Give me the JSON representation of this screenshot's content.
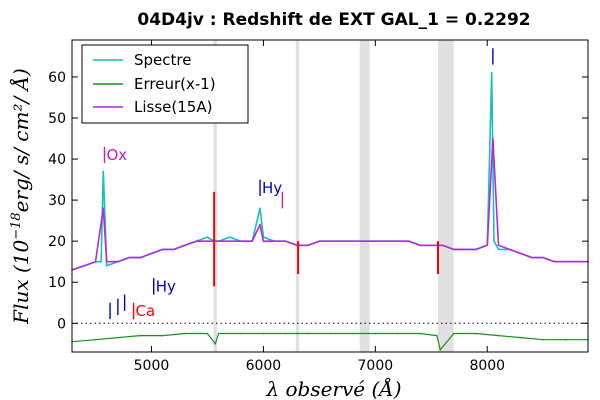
{
  "chart_data": {
    "type": "line",
    "title": "04D4jv : Redshift de EXT GAL_1 = 0.2292",
    "xlabel": "λ observé (Å)",
    "ylabel_main": "Flux (10",
    "ylabel_exp": "−18",
    "ylabel_units": "erg/ s/ cm²/ Å)",
    "xlim": [
      4290,
      8900
    ],
    "ylim": [
      -7,
      69
    ],
    "xticks": [
      5000,
      6000,
      7000,
      8000
    ],
    "yticks": [
      0,
      10,
      20,
      30,
      40,
      50,
      60
    ],
    "xtick_labels": [
      "5000",
      "6000",
      "7000",
      "8000"
    ],
    "ytick_labels": [
      "0",
      "10",
      "20",
      "30",
      "40",
      "50",
      "60"
    ],
    "legend_position": "top-left",
    "zero_line": true,
    "series": [
      {
        "name": "Spectre",
        "color": "#17bfbf",
        "x": [
          4290,
          4400,
          4500,
          4550,
          4570,
          4600,
          4700,
          4800,
          4900,
          5000,
          5100,
          5200,
          5300,
          5400,
          5500,
          5560,
          5600,
          5700,
          5800,
          5900,
          5970,
          6000,
          6100,
          6200,
          6300,
          6400,
          6500,
          6600,
          6700,
          6800,
          6900,
          7000,
          7100,
          7200,
          7300,
          7400,
          7500,
          7600,
          7700,
          7800,
          7900,
          8000,
          8040,
          8060,
          8100,
          8200,
          8300,
          8400,
          8500,
          8600,
          8700,
          8800,
          8900
        ],
        "y": [
          13,
          14,
          15,
          15,
          37,
          14,
          15,
          16,
          16,
          17,
          18,
          18,
          19,
          20,
          21,
          20,
          20,
          21,
          20,
          20,
          28,
          21,
          20,
          20,
          19,
          19,
          20,
          20,
          20,
          20,
          20,
          20,
          20,
          20,
          20,
          19,
          19,
          19,
          18,
          18,
          18,
          19,
          61,
          20,
          18,
          18,
          17,
          16,
          16,
          15,
          15,
          15,
          15
        ]
      },
      {
        "name": "Erreur(x-1)",
        "color": "#1e8c1e",
        "x": [
          4290,
          4500,
          4700,
          4900,
          5100,
          5300,
          5500,
          5570,
          5600,
          5800,
          6000,
          6200,
          6400,
          6600,
          6800,
          7000,
          7200,
          7400,
          7550,
          7580,
          7700,
          7900,
          8100,
          8300,
          8500,
          8700,
          8900
        ],
        "y": [
          -4.5,
          -4,
          -3.5,
          -3,
          -3,
          -2.5,
          -2.5,
          -5,
          -2.5,
          -2.5,
          -2.5,
          -2.5,
          -2.5,
          -2.5,
          -2.5,
          -2.5,
          -2.5,
          -2.5,
          -3,
          -6.5,
          -2.5,
          -2.5,
          -3,
          -3.5,
          -4,
          -4,
          -4
        ]
      },
      {
        "name": "Lisse(15A)",
        "color": "#b22cd6",
        "x": [
          4290,
          4400,
          4500,
          4570,
          4600,
          4700,
          4800,
          4900,
          5000,
          5100,
          5200,
          5300,
          5400,
          5500,
          5600,
          5700,
          5800,
          5900,
          5970,
          6000,
          6100,
          6200,
          6300,
          6400,
          6500,
          6600,
          6700,
          6800,
          6900,
          7000,
          7100,
          7200,
          7300,
          7400,
          7500,
          7600,
          7700,
          7800,
          7900,
          8000,
          8050,
          8100,
          8200,
          8300,
          8400,
          8500,
          8600,
          8700,
          8800,
          8900
        ],
        "y": [
          13,
          14,
          15,
          28,
          15,
          15,
          16,
          16,
          17,
          18,
          18,
          19,
          20,
          20,
          20,
          20,
          20,
          20,
          24,
          20,
          20,
          20,
          19,
          19,
          20,
          20,
          20,
          20,
          20,
          20,
          20,
          20,
          20,
          19,
          19,
          19,
          18,
          18,
          18,
          19,
          45,
          19,
          18,
          17,
          16,
          16,
          15,
          15,
          15,
          15
        ]
      }
    ],
    "bad_pixels": {
      "color": "#ff0000",
      "x": [
        5560,
        6310,
        7560
      ],
      "ymin": [
        9,
        12,
        12
      ],
      "ymax": [
        32,
        20,
        20
      ]
    },
    "shaded_bands": [
      [
        5555,
        5585
      ],
      [
        6290,
        6320
      ],
      [
        6860,
        6950
      ],
      [
        7560,
        7700
      ]
    ],
    "line_markers": [
      {
        "label": "Ox",
        "x": 4580,
        "color": "#c020c0",
        "y": 41,
        "tick_y": [
          39,
          43
        ]
      },
      {
        "label": "Hy",
        "x": 5970,
        "color": "#0000cc",
        "y": 33,
        "tick_y": [
          31,
          35
        ]
      },
      {
        "label": "",
        "x": 6170,
        "color": "#c020c0",
        "y": 30,
        "tick_y": [
          28,
          32
        ]
      },
      {
        "label": "Hy",
        "x": 5020,
        "color": "#0000cc",
        "y": 9,
        "tick_y": [
          7,
          11
        ]
      },
      {
        "label": "Ca",
        "x": 4840,
        "color": "#ff0000",
        "y": 3,
        "tick_y": [
          1,
          5
        ]
      },
      {
        "label": "",
        "x": 8050,
        "color": "#0000cc",
        "y": 63,
        "tick_y": [
          63,
          67
        ]
      },
      {
        "label": "",
        "x": 4630,
        "color": "#0000cc",
        "y": 3,
        "tick_y": [
          1,
          5
        ]
      },
      {
        "label": "",
        "x": 4700,
        "color": "#0000cc",
        "y": 4,
        "tick_y": [
          2,
          6
        ]
      },
      {
        "label": "",
        "x": 4760,
        "color": "#0000cc",
        "y": 5,
        "tick_y": [
          3,
          7
        ]
      }
    ]
  }
}
